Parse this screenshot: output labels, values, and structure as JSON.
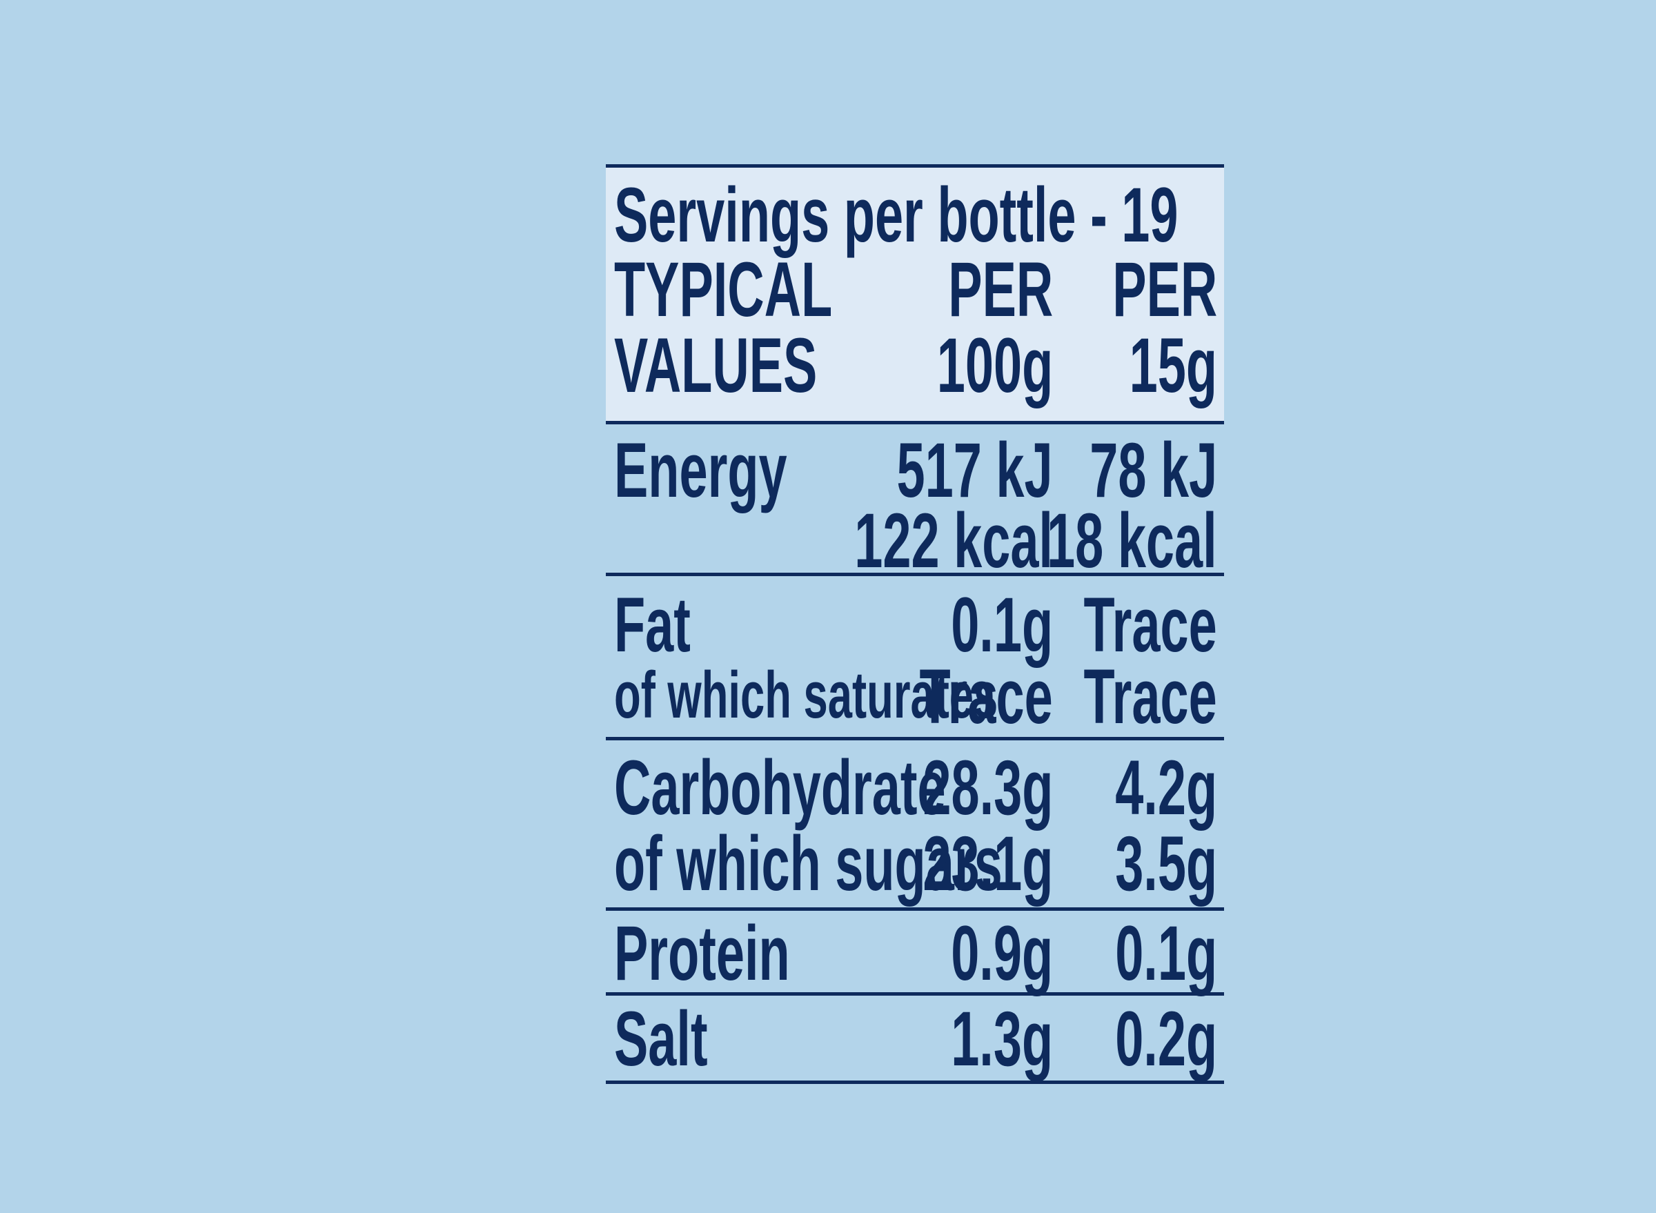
{
  "servings": "Servings per bottle - 19",
  "header": {
    "col1": [
      "TYPICAL",
      "VALUES"
    ],
    "col2": [
      "PER",
      "100g"
    ],
    "col3": [
      "PER",
      "15g"
    ]
  },
  "rows": {
    "energy": {
      "label": "Energy",
      "per100_kj": "517 kJ",
      "per15_kj": "78 kJ",
      "per100_kcal": "122 kcal",
      "per15_kcal": "18 kcal"
    },
    "fat": {
      "label": "Fat",
      "per100": "0.1g",
      "per15": "Trace"
    },
    "saturates": {
      "label": "of which saturates",
      "per100": "Trace",
      "per15": "Trace"
    },
    "carbohydrate": {
      "label": "Carbohydrate",
      "per100": "28.3g",
      "per15": "4.2g"
    },
    "sugars": {
      "label": "of which sugars",
      "per100": "23.1g",
      "per15": "3.5g"
    },
    "protein": {
      "label": "Protein",
      "per100": "0.9g",
      "per15": "0.1g"
    },
    "salt": {
      "label": "Salt",
      "per100": "1.3g",
      "per15": "0.2g"
    }
  },
  "colors": {
    "background": "#b3d4ea",
    "header": "#deeaf6",
    "ink": "#0e2a5c"
  }
}
